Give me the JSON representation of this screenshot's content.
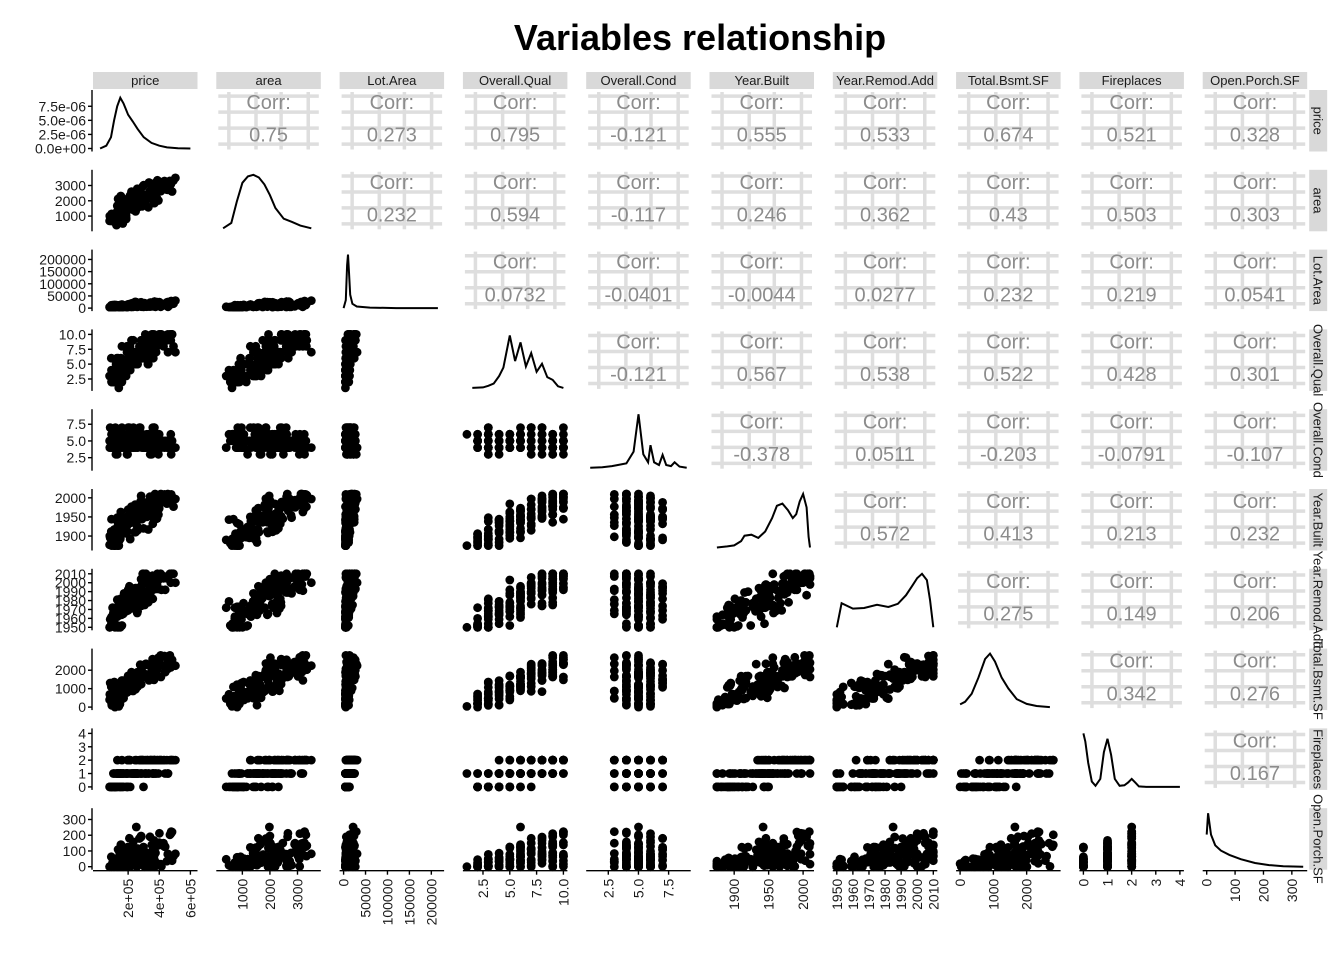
{
  "chart_data": {
    "type": "scatter",
    "title": "Variables relationship",
    "variables": [
      "price",
      "area",
      "Lot.Area",
      "Overall.Qual",
      "Overall.Cond",
      "Year.Built",
      "Year.Remod.Add",
      "Total.Bsmt.SF",
      "Fireplaces",
      "Open.Porch.SF"
    ],
    "corr_label": "Corr:",
    "correlations": [
      [
        "",
        "0.75",
        "0.273",
        "0.795",
        "-0.121",
        "0.555",
        "0.533",
        "0.674",
        "0.521",
        "0.328"
      ],
      [
        "",
        "",
        "0.232",
        "0.594",
        "-0.117",
        "0.246",
        "0.362",
        "0.43",
        "0.503",
        "0.303"
      ],
      [
        "",
        "",
        "",
        "0.0732",
        "-0.0401",
        "-0.0044",
        "0.0277",
        "0.232",
        "0.219",
        "0.0541"
      ],
      [
        "",
        "",
        "",
        "",
        "-0.121",
        "0.567",
        "0.538",
        "0.522",
        "0.428",
        "0.301"
      ],
      [
        "",
        "",
        "",
        "",
        "",
        "-0.378",
        "0.0511",
        "-0.203",
        "-0.0791",
        "-0.107"
      ],
      [
        "",
        "",
        "",
        "",
        "",
        "",
        "0.572",
        "0.413",
        "0.213",
        "0.232"
      ],
      [
        "",
        "",
        "",
        "",
        "",
        "",
        "",
        "0.275",
        "0.149",
        "0.206"
      ],
      [
        "",
        "",
        "",
        "",
        "",
        "",
        "",
        "",
        "0.342",
        "0.276"
      ],
      [
        "",
        "",
        "",
        "",
        "",
        "",
        "",
        "",
        "",
        "0.167"
      ],
      [
        "",
        "",
        "",
        "",
        "",
        "",
        "",
        "",
        "",
        ""
      ]
    ],
    "ranges": [
      [
        0,
        620000
      ],
      [
        200,
        3700
      ],
      [
        0,
        220000
      ],
      [
        1,
        10
      ],
      [
        1,
        9
      ],
      [
        1870,
        2010
      ],
      [
        1950,
        2010
      ],
      [
        0,
        2900
      ],
      [
        0,
        4
      ],
      [
        0,
        340
      ]
    ],
    "x_ticks": [
      {
        "values": [
          200000,
          400000,
          600000
        ],
        "labels": [
          "2e+05",
          "4e+05",
          "6e+05"
        ]
      },
      {
        "values": [
          1000,
          2000,
          3000
        ],
        "labels": [
          "1000",
          "2000",
          "3000"
        ]
      },
      {
        "values": [
          0,
          50000,
          100000,
          150000,
          200000
        ],
        "labels": [
          "0",
          "50000",
          "100000",
          "150000",
          "200000"
        ]
      },
      {
        "values": [
          2.5,
          5,
          7.5,
          10
        ],
        "labels": [
          "2.5",
          "5.0",
          "7.5",
          "10.0"
        ]
      },
      {
        "values": [
          2.5,
          5,
          7.5
        ],
        "labels": [
          "2.5",
          "5.0",
          "7.5"
        ]
      },
      {
        "values": [
          1900,
          1950,
          2000
        ],
        "labels": [
          "1900",
          "1950",
          "2000"
        ]
      },
      {
        "values": [
          1950,
          1960,
          1970,
          1980,
          1990,
          2000,
          2010
        ],
        "labels": [
          "1950",
          "1960",
          "1970",
          "1980",
          "1990",
          "2000",
          "2010"
        ]
      },
      {
        "values": [
          0,
          1000,
          2000
        ],
        "labels": [
          "0",
          "1000",
          "2000"
        ]
      },
      {
        "values": [
          0,
          1,
          2,
          3,
          4
        ],
        "labels": [
          "0",
          "1",
          "2",
          "3",
          "4"
        ]
      },
      {
        "values": [
          0,
          100,
          200,
          300
        ],
        "labels": [
          "0",
          "100",
          "200",
          "300"
        ]
      }
    ],
    "y_ticks": [
      {
        "values": [
          0,
          2.5e-06,
          5e-06,
          7.5e-06
        ],
        "labels": [
          "0.0e+00",
          "2.5e-06",
          "5.0e-06",
          "7.5e-06"
        ],
        "range": [
          0,
          9.5e-06
        ]
      },
      {
        "values": [
          1000,
          2000,
          3000
        ],
        "labels": [
          "1000",
          "2000",
          "3000"
        ]
      },
      {
        "values": [
          0,
          50000,
          100000,
          150000,
          200000
        ],
        "labels": [
          "0",
          "50000",
          "100000",
          "150000",
          "200000"
        ]
      },
      {
        "values": [
          2.5,
          5,
          7.5,
          10
        ],
        "labels": [
          "2.5",
          "5.0",
          "7.5",
          "10.0"
        ]
      },
      {
        "values": [
          2.5,
          5,
          7.5
        ],
        "labels": [
          "2.5",
          "5.0",
          "7.5"
        ]
      },
      {
        "values": [
          1900,
          1950,
          2000
        ],
        "labels": [
          "1900",
          "1950",
          "2000"
        ]
      },
      {
        "values": [
          1950,
          1960,
          1970,
          1980,
          1990,
          2000,
          2010
        ],
        "labels": [
          "1950",
          "1960",
          "1970",
          "1980",
          "1990",
          "2000",
          "2010"
        ]
      },
      {
        "values": [
          0,
          1000,
          2000
        ],
        "labels": [
          "0",
          "1000",
          "2000"
        ]
      },
      {
        "values": [
          0,
          1,
          2,
          3,
          4
        ],
        "labels": [
          "0",
          "1",
          "2",
          "3",
          "4"
        ]
      },
      {
        "values": [
          0,
          100,
          200,
          300
        ],
        "labels": [
          "0",
          "100",
          "200",
          "300"
        ]
      }
    ],
    "densities": [
      {
        "x": [
          20000,
          60000,
          90000,
          110000,
          130000,
          150000,
          170000,
          200000,
          230000,
          260000,
          300000,
          350000,
          400000,
          450000,
          520000,
          600000
        ],
        "y": [
          0,
          5e-07,
          2e-06,
          5e-06,
          7.5e-06,
          9e-06,
          8e-06,
          6e-06,
          4.8e-06,
          3.5e-06,
          2e-06,
          1e-06,
          5e-07,
          2e-07,
          5e-08,
          0
        ]
      },
      {
        "x": [
          300,
          600,
          800,
          1000,
          1200,
          1400,
          1600,
          1800,
          2000,
          2200,
          2500,
          2800,
          3100,
          3500
        ],
        "y": [
          0,
          0.1,
          0.5,
          0.85,
          0.97,
          1.0,
          0.95,
          0.82,
          0.62,
          0.38,
          0.18,
          0.12,
          0.05,
          0
        ]
      },
      {
        "x": [
          0,
          5000,
          8000,
          10000,
          12000,
          15000,
          20000,
          30000,
          60000,
          120000,
          215000
        ],
        "y": [
          0,
          0.15,
          0.8,
          1.0,
          0.7,
          0.25,
          0.08,
          0.03,
          0.01,
          0.0,
          0
        ]
      },
      {
        "x": [
          1.5,
          2.5,
          3,
          3.5,
          4,
          4.4,
          5,
          5.5,
          6,
          6.5,
          7,
          7.5,
          8,
          8.5,
          9,
          9.5,
          10
        ],
        "y": [
          0,
          0.01,
          0.04,
          0.08,
          0.22,
          0.38,
          0.98,
          0.5,
          0.85,
          0.4,
          0.65,
          0.3,
          0.45,
          0.2,
          0.15,
          0.03,
          0
        ]
      },
      {
        "x": [
          1,
          2,
          2.8,
          3.3,
          4,
          4.6,
          5,
          5.4,
          5.8,
          6,
          6.3,
          6.7,
          7,
          7.3,
          7.7,
          8,
          8.4,
          9
        ],
        "y": [
          0,
          0.01,
          0.03,
          0.05,
          0.08,
          0.3,
          1.0,
          0.25,
          0.1,
          0.42,
          0.1,
          0.05,
          0.24,
          0.05,
          0.03,
          0.1,
          0.02,
          0
        ]
      },
      {
        "x": [
          1875,
          1890,
          1900,
          1910,
          1915,
          1925,
          1935,
          1945,
          1955,
          1962,
          1970,
          1978,
          1985,
          1990,
          1995,
          2000,
          2005,
          2008,
          2010
        ],
        "y": [
          0,
          0.02,
          0.04,
          0.12,
          0.22,
          0.24,
          0.18,
          0.3,
          0.55,
          0.78,
          0.82,
          0.7,
          0.55,
          0.62,
          0.86,
          1.0,
          0.75,
          0.2,
          0
        ]
      },
      {
        "x": [
          1950,
          1953,
          1960,
          1967,
          1975,
          1982,
          1988,
          1993,
          1997,
          2000,
          2003,
          2006,
          2008,
          2010
        ],
        "y": [
          0,
          0.45,
          0.35,
          0.36,
          0.42,
          0.38,
          0.44,
          0.6,
          0.78,
          0.92,
          1.0,
          0.88,
          0.5,
          0
        ]
      },
      {
        "x": [
          0,
          150,
          350,
          550,
          750,
          900,
          1050,
          1250,
          1450,
          1700,
          2000,
          2300,
          2700
        ],
        "y": [
          0.05,
          0.1,
          0.25,
          0.55,
          0.9,
          1.0,
          0.85,
          0.55,
          0.35,
          0.15,
          0.06,
          0.02,
          0
        ]
      },
      {
        "x": [
          0,
          0.08,
          0.2,
          0.35,
          0.5,
          0.7,
          0.85,
          1,
          1.15,
          1.3,
          1.5,
          1.7,
          1.85,
          2,
          2.15,
          2.3,
          2.6,
          3,
          4
        ],
        "y": [
          1.0,
          0.85,
          0.45,
          0.1,
          0.02,
          0.15,
          0.65,
          0.9,
          0.6,
          0.15,
          0.02,
          0.03,
          0.08,
          0.15,
          0.08,
          0.01,
          0,
          0,
          0
        ]
      },
      {
        "x": [
          0,
          5,
          15,
          30,
          50,
          80,
          120,
          170,
          220,
          270,
          340
        ],
        "y": [
          0.6,
          1.0,
          0.6,
          0.4,
          0.3,
          0.22,
          0.14,
          0.07,
          0.03,
          0.01,
          0
        ]
      }
    ],
    "grid": false,
    "legend": "none"
  }
}
